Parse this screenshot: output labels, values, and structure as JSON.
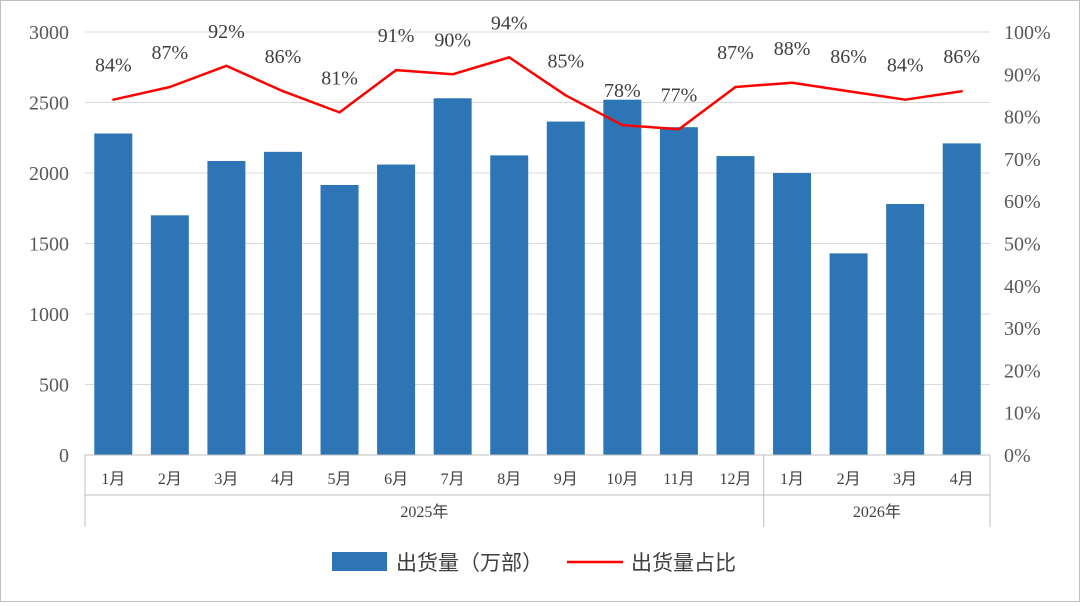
{
  "chart_data": {
    "type": "bar",
    "title": "",
    "categories": [
      "1月",
      "2月",
      "3月",
      "4月",
      "5月",
      "6月",
      "7月",
      "8月",
      "9月",
      "10月",
      "11月",
      "12月",
      "1月",
      "2月",
      "3月",
      "4月"
    ],
    "year_groups": [
      {
        "label": "2025年",
        "start": 0,
        "end": 11
      },
      {
        "label": "2026年",
        "start": 12,
        "end": 15
      }
    ],
    "series": [
      {
        "name": "出货量（万部）",
        "type": "bar",
        "axis": "left",
        "color": "#2e75b6",
        "values": [
          2280,
          1700,
          2085,
          2150,
          1915,
          2060,
          2530,
          2125,
          2365,
          2520,
          2325,
          2120,
          2000,
          1430,
          1780,
          2210
        ]
      },
      {
        "name": "出货量占比",
        "type": "line",
        "axis": "right",
        "color": "#ff0000",
        "values": [
          84,
          87,
          92,
          86,
          81,
          91,
          90,
          94,
          85,
          78,
          77,
          87,
          88,
          86,
          84,
          86
        ],
        "labels": [
          "84%",
          "87%",
          "92%",
          "86%",
          "81%",
          "91%",
          "90%",
          "94%",
          "85%",
          "78%",
          "77%",
          "87%",
          "88%",
          "86%",
          "84%",
          "86%"
        ]
      }
    ],
    "left_axis": {
      "min": 0,
      "max": 3000,
      "ticks": [
        "0",
        "500",
        "1000",
        "1500",
        "2000",
        "2500",
        "3000"
      ]
    },
    "right_axis": {
      "min": 0,
      "max": 100,
      "unit": "%",
      "ticks": [
        "0%",
        "10%",
        "20%",
        "30%",
        "40%",
        "50%",
        "60%",
        "70%",
        "80%",
        "90%",
        "100%"
      ]
    },
    "grid": "horizontal",
    "legend_position": "bottom"
  },
  "legend": {
    "bar_label": "出货量（万部）",
    "line_label": "出货量占比"
  }
}
